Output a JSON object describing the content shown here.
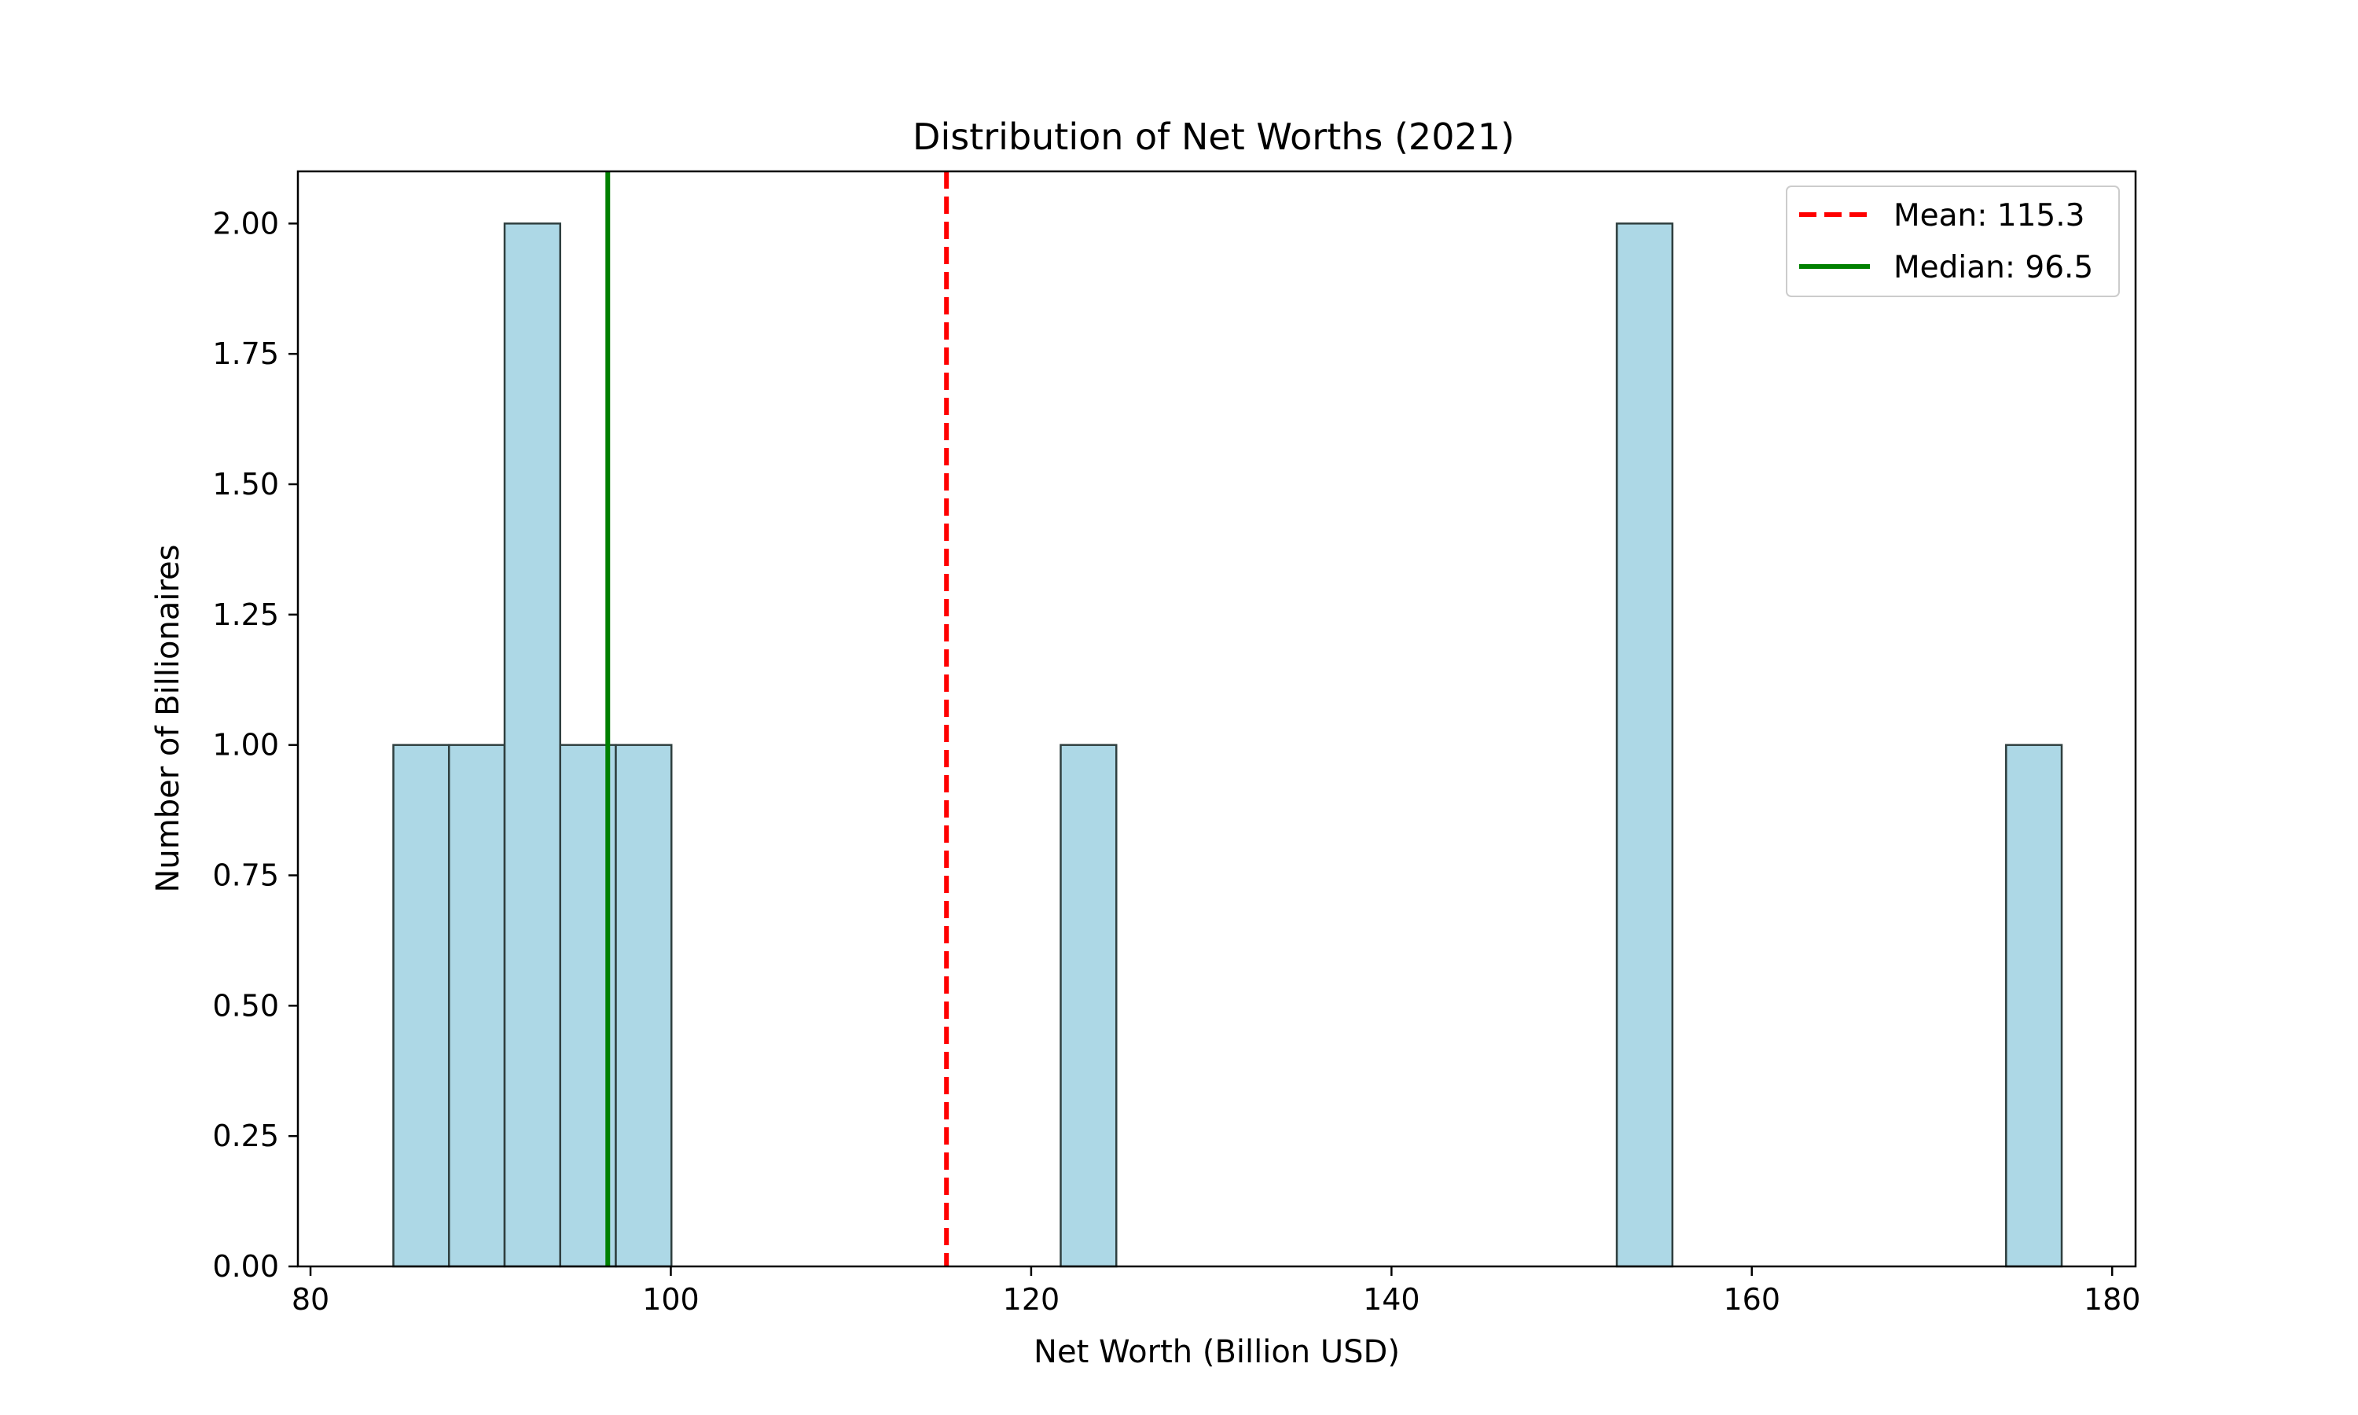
{
  "chart_data": {
    "type": "bar",
    "title": "Distribution of Net Worths (2021)",
    "xlabel": "Net Worth (Billion USD)",
    "ylabel": "Number of Billionaires",
    "xlim": [
      79.3,
      181.3
    ],
    "ylim": [
      0,
      2.1
    ],
    "xticks": [
      80,
      100,
      120,
      140,
      160,
      180
    ],
    "yticks": [
      0.0,
      0.25,
      0.5,
      0.75,
      1.0,
      1.25,
      1.5,
      1.75,
      2.0
    ],
    "xtick_labels": [
      "80",
      "100",
      "120",
      "140",
      "160",
      "180"
    ],
    "ytick_labels": [
      "0.00",
      "0.25",
      "0.50",
      "0.75",
      "1.00",
      "1.25",
      "1.50",
      "1.75",
      "2.00"
    ],
    "bin_start": 84.6,
    "bin_end": 177.2,
    "bin_count": 30,
    "counts": [
      1,
      1,
      2,
      1,
      1,
      0,
      0,
      0,
      0,
      0,
      0,
      0,
      1,
      0,
      0,
      0,
      0,
      0,
      0,
      0,
      0,
      0,
      2,
      0,
      0,
      0,
      0,
      0,
      0,
      1
    ],
    "bar_color": "#add8e6",
    "bar_edge_color": "#2f3f3f",
    "lines": [
      {
        "name": "Mean: 115.3",
        "value": 115.3,
        "color": "#ff0000",
        "style": "dashed"
      },
      {
        "name": "Median: 96.5",
        "value": 96.5,
        "color": "#008000",
        "style": "solid"
      }
    ],
    "legend_position": "upper right",
    "grid": false
  }
}
